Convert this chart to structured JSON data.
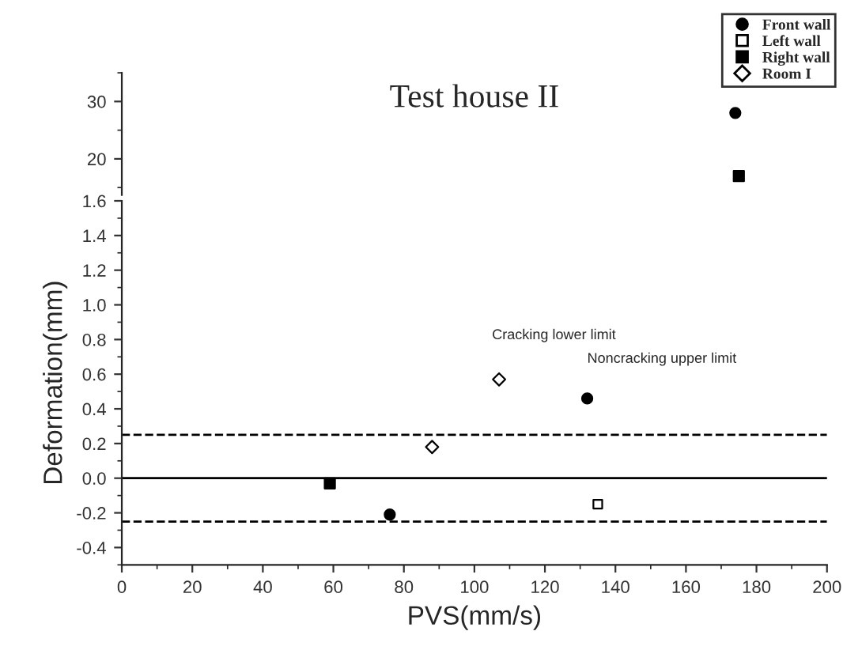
{
  "chart_data": [
    {
      "type": "scatter",
      "title": "Test house II",
      "xlim": [
        0,
        200
      ],
      "ylim": [
        13.7,
        35
      ],
      "yticks": [
        20,
        30
      ],
      "tick_labels": "y",
      "legend": "top right",
      "series": [
        {
          "name": "Front wall",
          "color": "#000000",
          "marker": "circle",
          "x": [
            174
          ],
          "values": [
            28
          ]
        },
        {
          "name": "Left wall",
          "color": "#ffffff",
          "marker": "square"
        },
        {
          "name": "Right wall",
          "color": "#000000",
          "marker": "square",
          "x": [
            175
          ],
          "values": [
            17
          ]
        },
        {
          "name": "Room I",
          "color": "#ffffff",
          "marker": "diamond"
        }
      ]
    },
    {
      "type": "scatter",
      "xlabel": "PVS(mm/s)",
      "ylabel": "Deformation(mm)",
      "xlim": [
        0,
        200
      ],
      "xticks": [
        0,
        20,
        40,
        60,
        80,
        100,
        120,
        140,
        160,
        180,
        200
      ],
      "ylim": [
        -0.5,
        1.6
      ],
      "yticks": [
        -0.4,
        -0.2,
        {
          "value": 0,
          "label": "0.0"
        },
        0.2,
        0.4,
        0.6,
        0.8,
        {
          "value": 1,
          "label": "1.0"
        },
        1.2,
        1.4,
        1.6
      ],
      "series": [
        {
          "color": "#000000",
          "marker": "circle",
          "x": [
            76,
            132
          ],
          "values": [
            -0.21,
            0.46
          ]
        },
        {
          "color": "#ffffff",
          "marker": "square",
          "x": [
            135
          ],
          "values": [
            -0.15
          ]
        },
        {
          "color": "#000000",
          "marker": "square",
          "x": [
            59
          ],
          "values": [
            -0.03
          ]
        },
        {
          "color": "#ffffff",
          "marker": "diamond",
          "x": [
            88,
            107
          ],
          "values": [
            0.18,
            0.57
          ]
        }
      ],
      "ref_lines": [
        {
          "axis": "y",
          "value": 0.25,
          "line_style": "dashed"
        },
        {
          "axis": "y",
          "value": 0.0,
          "line_style": "solid"
        },
        {
          "axis": "y",
          "value": -0.25,
          "line_style": "dashed"
        }
      ],
      "annotations": [
        "Cracking lower limit",
        "Noncracking upper limit"
      ]
    }
  ]
}
